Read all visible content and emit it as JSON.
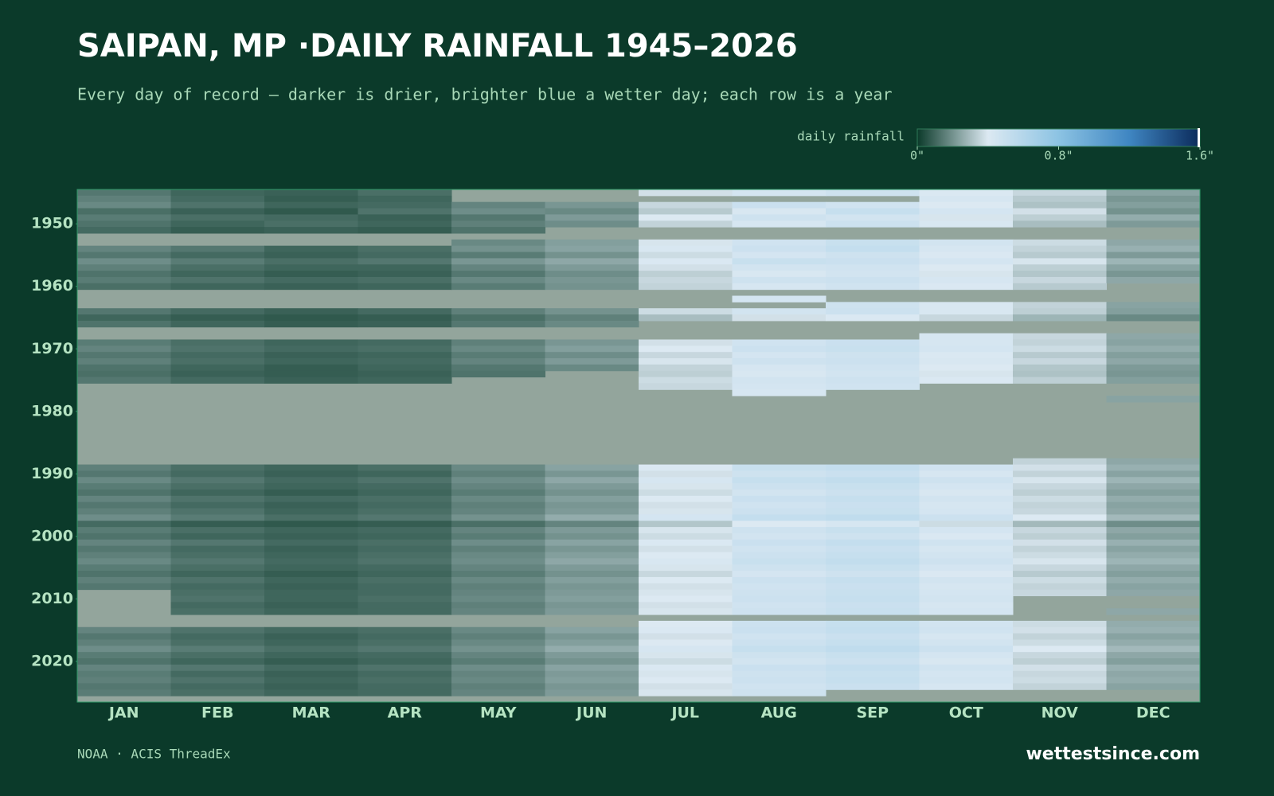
{
  "chart_data": {
    "type": "heatmap",
    "title": "SAIPAN, MP ·DAILY RAINFALL 1945–2026",
    "subtitle": "Every day of record — darker is drier, brighter blue a wetter day; each row is a year",
    "colorbar_label": "daily rainfall",
    "zlim": [
      0,
      1.6
    ],
    "colorbar_ticks": [
      {
        "value": 0,
        "label": "0\""
      },
      {
        "value": 0.8,
        "label": "0.8\""
      },
      {
        "value": 1.6,
        "label": "1.6\""
      }
    ],
    "colors": [
      "#0b3a2a",
      "#dce9f2",
      "#8cc3e3",
      "#3f86c2",
      "#0b2a5a"
    ],
    "missing_color": "#93a59c",
    "source": "NOAA · ACIS ThreadEx",
    "brand": "wettestsince.com",
    "categories": [
      "JAN",
      "FEB",
      "MAR",
      "APR",
      "MAY",
      "JUN",
      "JUL",
      "AUG",
      "SEP",
      "OCT",
      "NOV",
      "DEC"
    ],
    "ylim": [
      1944.5,
      2026.5
    ],
    "yticks": [
      1950,
      1960,
      1970,
      1980,
      1990,
      2000,
      2010,
      2020
    ],
    "y": [
      1945,
      1946,
      1947,
      1948,
      1949,
      1950,
      1951,
      1952,
      1953,
      1954,
      1955,
      1956,
      1957,
      1958,
      1959,
      1960,
      1961,
      1962,
      1963,
      1964,
      1965,
      1966,
      1967,
      1968,
      1969,
      1970,
      1971,
      1972,
      1973,
      1974,
      1975,
      1976,
      1977,
      1978,
      1979,
      1980,
      1981,
      1982,
      1983,
      1984,
      1985,
      1986,
      1987,
      1988,
      1989,
      1990,
      1991,
      1992,
      1993,
      1994,
      1995,
      1996,
      1997,
      1998,
      1999,
      2000,
      2001,
      2002,
      2003,
      2004,
      2005,
      2006,
      2007,
      2008,
      2009,
      2010,
      2011,
      2012,
      2013,
      2014,
      2015,
      2016,
      2017,
      2018,
      2019,
      2020,
      2021,
      2022,
      2023,
      2024,
      2025,
      2026
    ],
    "values": [
      [
        0.14,
        0.1,
        0.09,
        0.12,
        null,
        null,
        0.38,
        0.44,
        0.47,
        0.41,
        0.36,
        0.24
      ],
      [
        0.16,
        0.11,
        0.08,
        0.1,
        null,
        null,
        null,
        null,
        null,
        0.43,
        0.33,
        0.21
      ],
      [
        0.18,
        0.13,
        0.1,
        0.11,
        0.17,
        0.21,
        0.36,
        0.49,
        0.46,
        0.4,
        0.31,
        0.23
      ],
      [
        0.12,
        0.09,
        0.07,
        0.13,
        0.19,
        0.18,
        0.33,
        0.42,
        0.51,
        0.44,
        0.38,
        0.2
      ],
      [
        0.15,
        0.12,
        0.11,
        0.09,
        0.14,
        0.22,
        0.4,
        0.47,
        0.45,
        0.39,
        0.34,
        0.26
      ],
      [
        0.13,
        0.1,
        0.12,
        0.1,
        0.16,
        0.19,
        0.35,
        0.43,
        0.48,
        0.42,
        0.3,
        0.22
      ],
      [
        0.11,
        0.08,
        0.09,
        0.08,
        0.13,
        null,
        null,
        null,
        null,
        null,
        null,
        null
      ],
      [
        null,
        null,
        null,
        null,
        null,
        null,
        null,
        null,
        null,
        null,
        null,
        null
      ],
      [
        null,
        null,
        null,
        null,
        0.18,
        0.23,
        0.39,
        0.46,
        0.5,
        0.45,
        0.37,
        0.25
      ],
      [
        0.17,
        0.14,
        0.1,
        0.12,
        0.2,
        0.24,
        0.42,
        0.48,
        0.52,
        0.43,
        0.35,
        0.27
      ],
      [
        0.14,
        0.11,
        0.09,
        0.11,
        0.15,
        0.2,
        0.37,
        0.44,
        0.47,
        0.41,
        0.33,
        0.22
      ],
      [
        0.19,
        0.15,
        0.12,
        0.14,
        0.21,
        0.25,
        0.41,
        0.5,
        0.49,
        0.44,
        0.39,
        0.28
      ],
      [
        0.16,
        0.12,
        0.1,
        0.1,
        0.17,
        0.22,
        0.38,
        0.45,
        0.46,
        0.4,
        0.34,
        0.24
      ],
      [
        0.13,
        0.1,
        0.08,
        0.09,
        0.14,
        0.19,
        0.34,
        0.42,
        0.45,
        0.39,
        0.32,
        0.21
      ],
      [
        0.15,
        0.13,
        0.11,
        0.12,
        0.18,
        0.21,
        0.36,
        0.47,
        0.48,
        0.43,
        0.36,
        0.25
      ],
      [
        0.12,
        0.1,
        0.09,
        0.1,
        0.15,
        0.2,
        0.35,
        0.43,
        0.46,
        0.41,
        0.33,
        null
      ],
      [
        null,
        null,
        null,
        null,
        null,
        null,
        null,
        null,
        null,
        null,
        null,
        null
      ],
      [
        null,
        null,
        null,
        null,
        null,
        null,
        null,
        0.44,
        null,
        null,
        null,
        null
      ],
      [
        null,
        null,
        null,
        null,
        null,
        null,
        null,
        null,
        0.47,
        0.42,
        0.35,
        0.24
      ],
      [
        0.14,
        0.11,
        0.09,
        0.11,
        0.16,
        0.2,
        0.37,
        0.45,
        0.48,
        0.42,
        0.34,
        0.23
      ],
      [
        0.1,
        0.08,
        0.07,
        0.08,
        0.12,
        0.16,
        0.3,
        0.38,
        0.41,
        0.36,
        0.28,
        0.18
      ],
      [
        0.13,
        0.1,
        0.08,
        0.09,
        0.14,
        0.18,
        null,
        null,
        null,
        null,
        null,
        null
      ],
      [
        null,
        null,
        null,
        null,
        null,
        null,
        null,
        null,
        null,
        null,
        null,
        null
      ],
      [
        null,
        null,
        null,
        null,
        null,
        null,
        null,
        null,
        null,
        0.43,
        0.36,
        0.25
      ],
      [
        0.15,
        0.12,
        0.1,
        0.11,
        0.16,
        0.21,
        0.38,
        0.46,
        0.49,
        0.43,
        0.35,
        0.24
      ],
      [
        0.17,
        0.13,
        0.11,
        0.12,
        0.18,
        0.23,
        0.4,
        0.48,
        0.5,
        0.44,
        0.37,
        0.26
      ],
      [
        0.14,
        0.11,
        0.09,
        0.1,
        0.15,
        0.19,
        0.36,
        0.44,
        0.47,
        0.41,
        0.33,
        0.23
      ],
      [
        0.16,
        0.12,
        0.1,
        0.11,
        0.17,
        0.22,
        0.39,
        0.47,
        0.48,
        0.42,
        0.36,
        0.25
      ],
      [
        0.13,
        0.1,
        0.08,
        0.1,
        0.14,
        0.18,
        0.35,
        0.43,
        0.46,
        0.4,
        0.32,
        0.22
      ],
      [
        0.12,
        0.09,
        0.08,
        0.09,
        0.13,
        null,
        0.34,
        0.42,
        0.45,
        0.39,
        0.31,
        0.21
      ],
      [
        0.14,
        0.11,
        0.09,
        0.1,
        null,
        null,
        0.37,
        0.45,
        0.47,
        0.41,
        0.34,
        0.23
      ],
      [
        null,
        null,
        null,
        null,
        null,
        null,
        0.36,
        0.44,
        0.46,
        null,
        null,
        null
      ],
      [
        null,
        null,
        null,
        null,
        null,
        null,
        null,
        0.43,
        null,
        null,
        null,
        null
      ],
      [
        null,
        null,
        null,
        null,
        null,
        null,
        null,
        null,
        null,
        null,
        null,
        0.24
      ],
      [
        null,
        null,
        null,
        null,
        null,
        null,
        null,
        null,
        null,
        null,
        null,
        null
      ],
      [
        null,
        null,
        null,
        null,
        null,
        null,
        null,
        null,
        null,
        null,
        null,
        null
      ],
      [
        null,
        null,
        null,
        null,
        null,
        null,
        null,
        null,
        null,
        null,
        null,
        null
      ],
      [
        null,
        null,
        null,
        null,
        null,
        null,
        null,
        null,
        null,
        null,
        null,
        null
      ],
      [
        null,
        null,
        null,
        null,
        null,
        null,
        null,
        null,
        null,
        null,
        null,
        null
      ],
      [
        null,
        null,
        null,
        null,
        null,
        null,
        null,
        null,
        null,
        null,
        null,
        null
      ],
      [
        null,
        null,
        null,
        null,
        null,
        null,
        null,
        null,
        null,
        null,
        null,
        null
      ],
      [
        null,
        null,
        null,
        null,
        null,
        null,
        null,
        null,
        null,
        null,
        null,
        null
      ],
      [
        null,
        null,
        null,
        null,
        null,
        null,
        null,
        null,
        null,
        null,
        null,
        null
      ],
      [
        null,
        null,
        null,
        null,
        null,
        null,
        null,
        null,
        null,
        null,
        0.35,
        0.25
      ],
      [
        0.16,
        0.12,
        0.1,
        0.12,
        0.18,
        0.24,
        0.41,
        0.5,
        0.52,
        0.46,
        0.38,
        0.27
      ],
      [
        0.14,
        0.11,
        0.09,
        0.1,
        0.16,
        0.21,
        0.38,
        0.47,
        0.49,
        0.43,
        0.35,
        0.24
      ],
      [
        0.18,
        0.14,
        0.11,
        0.13,
        0.19,
        0.25,
        0.43,
        0.51,
        0.53,
        0.47,
        0.39,
        0.28
      ],
      [
        0.15,
        0.12,
        0.1,
        0.11,
        0.17,
        0.22,
        0.39,
        0.48,
        0.5,
        0.44,
        0.36,
        0.25
      ],
      [
        0.13,
        0.1,
        0.08,
        0.1,
        0.15,
        0.2,
        0.37,
        0.45,
        0.48,
        0.42,
        0.34,
        0.23
      ],
      [
        0.17,
        0.13,
        0.11,
        0.12,
        0.18,
        0.23,
        0.4,
        0.49,
        0.51,
        0.45,
        0.37,
        0.26
      ],
      [
        0.14,
        0.11,
        0.09,
        0.11,
        0.16,
        0.21,
        0.38,
        0.46,
        0.49,
        0.43,
        0.35,
        0.24
      ],
      [
        0.16,
        0.13,
        0.1,
        0.12,
        0.17,
        0.22,
        0.39,
        0.48,
        0.5,
        0.44,
        0.36,
        0.25
      ],
      [
        0.19,
        0.15,
        0.12,
        0.14,
        0.2,
        0.26,
        0.44,
        0.52,
        0.54,
        0.48,
        0.4,
        0.29
      ],
      [
        0.11,
        0.08,
        0.07,
        0.08,
        0.12,
        0.17,
        0.32,
        0.4,
        0.43,
        0.37,
        0.29,
        0.19
      ],
      [
        0.15,
        0.12,
        0.1,
        0.11,
        0.17,
        0.22,
        0.39,
        0.47,
        0.5,
        0.44,
        0.36,
        0.25
      ],
      [
        0.13,
        0.1,
        0.09,
        0.1,
        0.15,
        0.2,
        0.37,
        0.45,
        0.47,
        0.41,
        0.34,
        0.23
      ],
      [
        0.17,
        0.14,
        0.11,
        0.12,
        0.19,
        0.24,
        0.41,
        0.49,
        0.52,
        0.46,
        0.38,
        0.27
      ],
      [
        0.14,
        0.11,
        0.09,
        0.11,
        0.16,
        0.21,
        0.38,
        0.46,
        0.49,
        0.43,
        0.35,
        0.24
      ],
      [
        0.16,
        0.12,
        0.1,
        0.12,
        0.18,
        0.23,
        0.4,
        0.48,
        0.51,
        0.45,
        0.37,
        0.26
      ],
      [
        0.18,
        0.14,
        0.11,
        0.13,
        0.19,
        0.25,
        0.42,
        0.5,
        0.53,
        0.47,
        0.39,
        0.28
      ],
      [
        0.15,
        0.12,
        0.1,
        0.11,
        0.17,
        0.22,
        0.39,
        0.47,
        0.5,
        0.44,
        0.36,
        0.25
      ],
      [
        0.13,
        0.1,
        0.08,
        0.1,
        0.15,
        0.2,
        0.36,
        0.44,
        0.47,
        0.41,
        0.33,
        0.23
      ],
      [
        0.16,
        0.13,
        0.1,
        0.12,
        0.18,
        0.23,
        0.4,
        0.48,
        0.51,
        0.45,
        0.37,
        0.26
      ],
      [
        0.14,
        0.11,
        0.09,
        0.11,
        0.16,
        0.21,
        0.38,
        0.46,
        0.49,
        0.43,
        0.35,
        0.24
      ],
      [
        null,
        0.12,
        0.1,
        0.11,
        0.17,
        0.22,
        0.39,
        0.47,
        0.5,
        0.44,
        0.36,
        0.25
      ],
      [
        null,
        0.13,
        0.1,
        0.12,
        0.18,
        0.23,
        0.4,
        0.48,
        0.51,
        0.45,
        null,
        null
      ],
      [
        null,
        0.11,
        0.09,
        0.11,
        0.16,
        0.21,
        0.38,
        0.46,
        0.49,
        0.43,
        null,
        null
      ],
      [
        null,
        0.12,
        0.1,
        0.11,
        0.17,
        0.22,
        0.39,
        0.47,
        0.5,
        0.44,
        null,
        0.25
      ],
      [
        null,
        null,
        null,
        null,
        null,
        null,
        null,
        null,
        null,
        null,
        null,
        null
      ],
      [
        null,
        null,
        null,
        null,
        null,
        null,
        0.4,
        0.48,
        0.51,
        0.45,
        0.37,
        0.26
      ],
      [
        0.17,
        0.13,
        0.11,
        0.12,
        0.18,
        0.24,
        0.41,
        0.49,
        0.52,
        0.46,
        0.38,
        0.27
      ],
      [
        0.14,
        0.11,
        0.09,
        0.11,
        0.16,
        0.21,
        0.38,
        0.46,
        0.49,
        0.43,
        0.35,
        0.24
      ],
      [
        0.16,
        0.12,
        0.1,
        0.12,
        0.18,
        0.23,
        0.4,
        0.48,
        0.51,
        0.45,
        0.37,
        0.26
      ],
      [
        0.19,
        0.15,
        0.12,
        0.14,
        0.2,
        0.26,
        0.43,
        0.51,
        0.54,
        0.48,
        0.4,
        0.29
      ],
      [
        0.15,
        0.12,
        0.1,
        0.11,
        0.17,
        0.22,
        0.39,
        0.47,
        0.5,
        0.44,
        0.36,
        0.25
      ],
      [
        0.13,
        0.1,
        0.08,
        0.1,
        0.15,
        0.2,
        0.37,
        0.45,
        0.48,
        0.42,
        0.34,
        0.23
      ],
      [
        0.17,
        0.14,
        0.11,
        0.13,
        0.19,
        0.24,
        0.41,
        0.49,
        0.52,
        0.46,
        0.38,
        0.27
      ],
      [
        0.15,
        0.11,
        0.09,
        0.11,
        0.17,
        0.22,
        0.39,
        0.47,
        0.5,
        0.44,
        0.36,
        0.25
      ],
      [
        0.16,
        0.13,
        0.1,
        0.12,
        0.18,
        0.23,
        0.4,
        0.48,
        0.51,
        0.45,
        0.37,
        0.26
      ],
      [
        0.14,
        0.11,
        0.09,
        0.11,
        0.16,
        0.21,
        0.38,
        0.46,
        0.49,
        0.43,
        0.35,
        0.24
      ],
      [
        0.15,
        0.12,
        0.1,
        0.11,
        0.17,
        0.22,
        0.39,
        0.47,
        null,
        null,
        null,
        null
      ],
      [
        null,
        null,
        null,
        null,
        null,
        null,
        null,
        null,
        null,
        null,
        null,
        null
      ]
    ]
  }
}
